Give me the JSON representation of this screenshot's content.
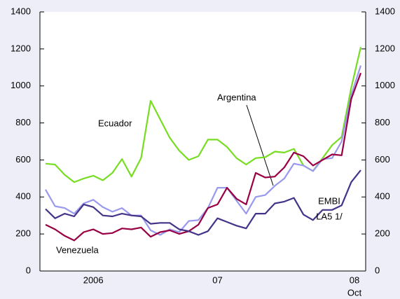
{
  "chart_data": {
    "type": "line",
    "categories": [
      null,
      null,
      null,
      null,
      null,
      "2006",
      null,
      null,
      null,
      null,
      null,
      null,
      null,
      null,
      null,
      null,
      null,
      null,
      "07",
      null,
      null,
      null,
      null,
      null,
      null,
      null,
      null,
      null,
      null,
      null,
      null,
      null,
      null,
      "08"
    ],
    "last_period_label": "Oct",
    "ylim": [
      0,
      1400
    ],
    "yticks": [
      0,
      200,
      400,
      600,
      800,
      1000,
      1200,
      1400
    ],
    "y2lim": [
      0,
      1400
    ],
    "y2ticks": [
      0,
      200,
      400,
      600,
      800,
      1000,
      1200,
      1400
    ],
    "series": [
      {
        "label": [
          "Ecuador"
        ],
        "color": "#77dd22",
        "values": [
          580,
          575,
          520,
          480,
          500,
          515,
          490,
          530,
          605,
          510,
          610,
          920,
          820,
          720,
          650,
          600,
          620,
          710,
          710,
          670,
          610,
          575,
          610,
          615,
          645,
          640,
          660,
          570,
          540,
          610,
          680,
          725,
          990,
          1210
        ]
      },
      {
        "label": [
          "Argentina"
        ],
        "color": "#9999ee",
        "values": [
          440,
          350,
          340,
          310,
          365,
          385,
          345,
          320,
          340,
          300,
          300,
          220,
          195,
          225,
          210,
          270,
          275,
          340,
          450,
          450,
          380,
          310,
          400,
          410,
          460,
          500,
          580,
          570,
          540,
          605,
          610,
          700,
          950,
          1110
        ]
      },
      {
        "label": [
          "Venezuela"
        ],
        "color": "#990044",
        "values": [
          250,
          225,
          190,
          165,
          210,
          225,
          200,
          205,
          230,
          225,
          235,
          185,
          210,
          220,
          200,
          215,
          250,
          340,
          360,
          450,
          390,
          360,
          530,
          505,
          510,
          560,
          640,
          620,
          570,
          600,
          630,
          625,
          930,
          1070
        ]
      },
      {
        "label": [
          "EMBI",
          "LA5 1/"
        ],
        "color": "#443388",
        "values": [
          335,
          285,
          310,
          295,
          360,
          345,
          300,
          295,
          310,
          300,
          295,
          255,
          260,
          260,
          225,
          215,
          195,
          215,
          285,
          265,
          245,
          230,
          310,
          310,
          365,
          375,
          395,
          305,
          275,
          330,
          330,
          355,
          480,
          545
        ]
      }
    ]
  }
}
